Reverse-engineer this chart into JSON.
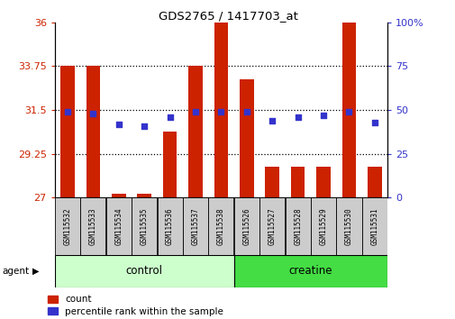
{
  "title": "GDS2765 / 1417703_at",
  "samples": [
    "GSM115532",
    "GSM115533",
    "GSM115534",
    "GSM115535",
    "GSM115536",
    "GSM115537",
    "GSM115538",
    "GSM115526",
    "GSM115527",
    "GSM115528",
    "GSM115529",
    "GSM115530",
    "GSM115531"
  ],
  "counts": [
    33.75,
    33.75,
    27.2,
    27.2,
    30.4,
    33.75,
    36.0,
    33.1,
    28.6,
    28.6,
    28.6,
    36.0,
    28.6
  ],
  "percentile_ranks_pct": [
    49,
    48,
    42,
    41,
    46,
    49,
    49,
    49,
    44,
    46,
    47,
    49,
    43
  ],
  "ylim_left": [
    27,
    36
  ],
  "ylim_right": [
    0,
    100
  ],
  "yticks_left": [
    27,
    29.25,
    31.5,
    33.75,
    36
  ],
  "yticks_right": [
    0,
    25,
    50,
    75,
    100
  ],
  "ytick_labels_right": [
    "0",
    "25",
    "50",
    "75",
    "100%"
  ],
  "bar_color": "#cc2200",
  "dot_color": "#3333cc",
  "bar_width": 0.55,
  "gridline_color": "#000000",
  "left_tick_color": "#cc2200",
  "right_tick_color": "#3333cc",
  "background_color": "#ffffff",
  "sample_box_color": "#cccccc",
  "control_color": "#ccffcc",
  "creatine_color": "#44dd44",
  "n_control": 7,
  "n_creatine": 6
}
